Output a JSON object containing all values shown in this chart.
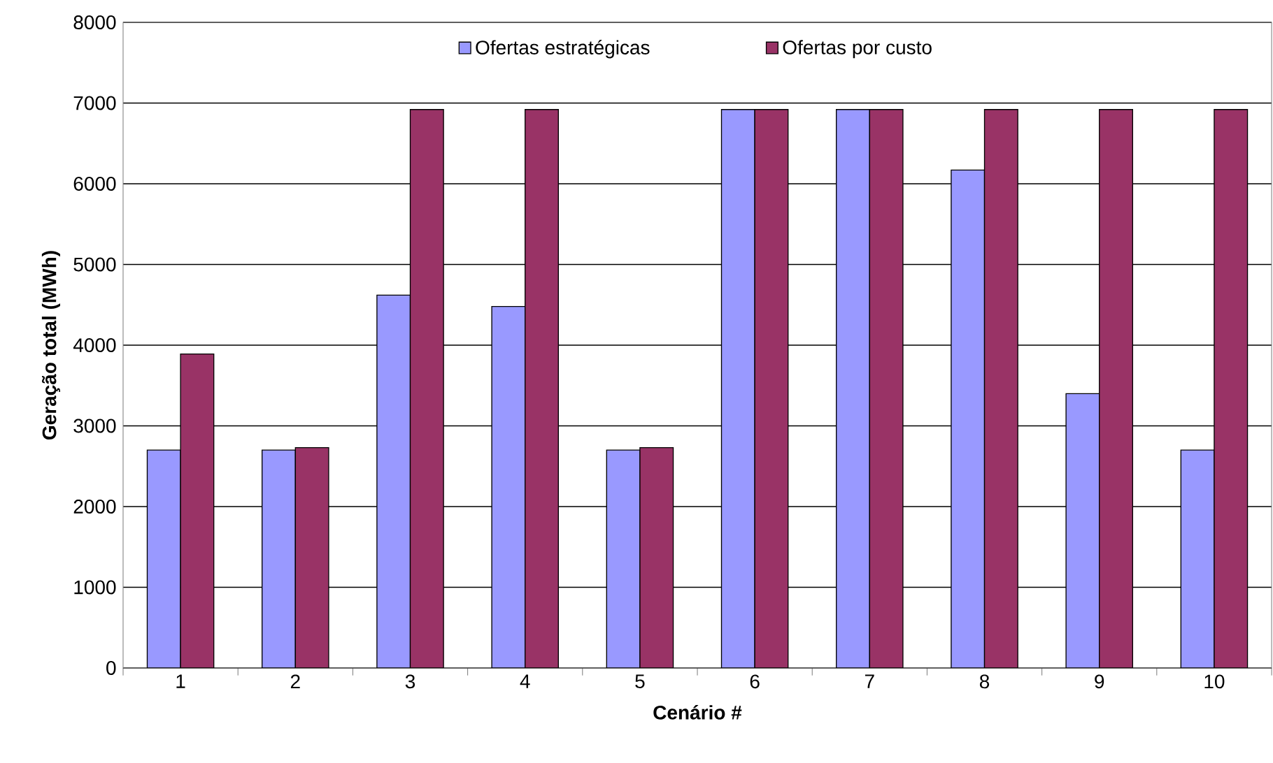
{
  "chart_data": {
    "type": "bar",
    "xlabel": "Cenário #",
    "ylabel": "Geração total (MWh)",
    "categories": [
      "1",
      "2",
      "3",
      "4",
      "5",
      "6",
      "7",
      "8",
      "9",
      "10"
    ],
    "series": [
      {
        "name": "Ofertas estratégicas",
        "color": "#9999ff",
        "values": [
          2700,
          2700,
          4620,
          4480,
          2700,
          6920,
          6920,
          6170,
          3400,
          2700
        ]
      },
      {
        "name": "Ofertas por custo",
        "color": "#993366",
        "values": [
          3890,
          2730,
          6920,
          6920,
          2730,
          6920,
          6920,
          6920,
          6920,
          6920
        ]
      }
    ],
    "ylim": [
      0,
      8000
    ],
    "yticks": [
      0,
      1000,
      2000,
      3000,
      4000,
      5000,
      6000,
      7000,
      8000
    ],
    "grid": "y",
    "legend": "top"
  }
}
